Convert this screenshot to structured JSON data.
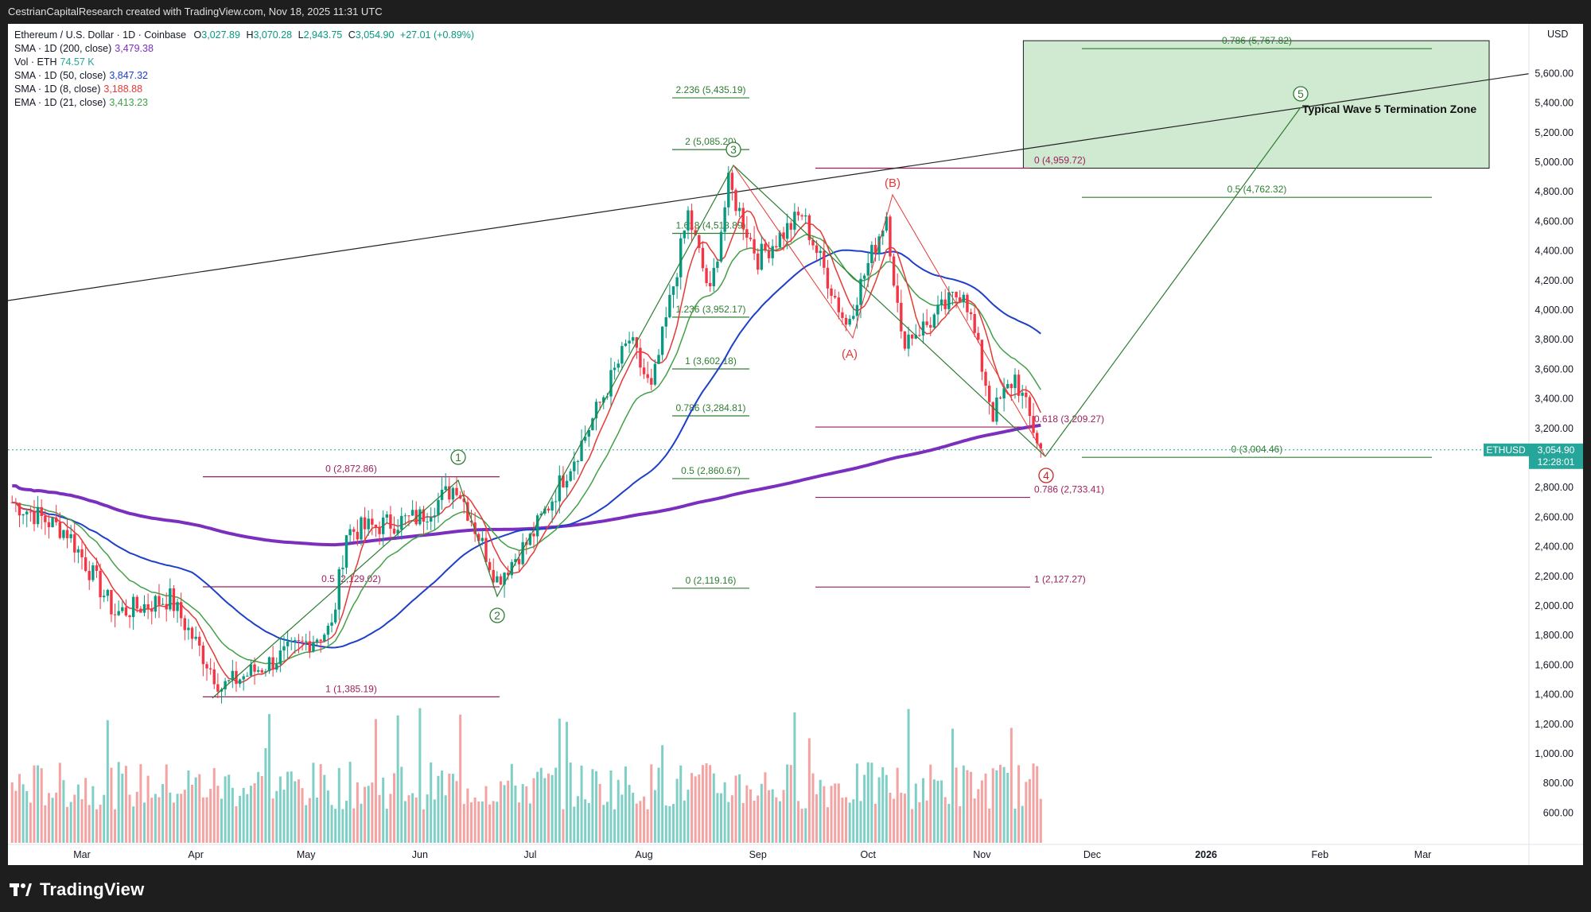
{
  "header": {
    "attribution": "CestrianCapitalResearch created with TradingView.com, Nov 18, 2025 11:31 UTC"
  },
  "legend": {
    "symbol": "Ethereum / U.S. Dollar · 1D · Coinbase",
    "ohlc": [
      {
        "k": "O",
        "v": "3,027.89"
      },
      {
        "k": "H",
        "v": "3,070.28"
      },
      {
        "k": "L",
        "v": "2,943.75"
      },
      {
        "k": "C",
        "v": "3,054.90"
      }
    ],
    "change": "+27.01 (+0.89%)",
    "indicators": [
      {
        "label": "SMA · 1D (200, close)",
        "value": "3,479.38",
        "color": "#7b2fbe"
      },
      {
        "label": "Vol · ETH",
        "value": "74.57 K",
        "color": "#26a69a"
      },
      {
        "label": "SMA · 1D (50, close)",
        "value": "3,847.32",
        "color": "#1e40c8"
      },
      {
        "label": "SMA · 1D (8, close)",
        "value": "3,188.88",
        "color": "#e53935"
      },
      {
        "label": "EMA · 1D (21, close)",
        "value": "3,413.23",
        "color": "#43a047"
      }
    ]
  },
  "price_axis": {
    "currency": "USD",
    "ticks": [
      "600.00",
      "800.00",
      "1,000.00",
      "1,200.00",
      "1,400.00",
      "1,600.00",
      "1,800.00",
      "2,000.00",
      "2,200.00",
      "2,400.00",
      "2,600.00",
      "2,800.00",
      "3,000.00",
      "3,200.00",
      "3,400.00",
      "3,600.00",
      "3,800.00",
      "4,000.00",
      "4,200.00",
      "4,400.00",
      "4,600.00",
      "4,800.00",
      "5,000.00",
      "5,200.00",
      "5,400.00",
      "5,600.00"
    ],
    "last_symbol": "ETHUSD",
    "last_price": "3,054.90",
    "countdown": "12:28:01"
  },
  "time_axis": {
    "ticks": [
      "Mar",
      "Apr",
      "May",
      "Jun",
      "Jul",
      "Aug",
      "Sep",
      "Oct",
      "Nov",
      "Dec",
      "2026",
      "Feb",
      "Mar"
    ],
    "bold": [
      "2026"
    ]
  },
  "annotations": {
    "fibs": [
      {
        "text": "0 (2,872.86)",
        "color": "#9c1f5c"
      },
      {
        "text": "0.5 (2,129.02)",
        "color": "#9c1f5c"
      },
      {
        "text": "1 (1,385.19)",
        "color": "#9c1f5c"
      },
      {
        "text": "2.236 (5,435.19)",
        "color": "#2e7d32"
      },
      {
        "text": "2 (5,085.20)",
        "color": "#2e7d32"
      },
      {
        "text": "1.618 (4,518.89)",
        "color": "#2e7d32"
      },
      {
        "text": "1.236 (3,952.17)",
        "color": "#2e7d32"
      },
      {
        "text": "1 (3,602.18)",
        "color": "#2e7d32"
      },
      {
        "text": "0.786 (3,284.81)",
        "color": "#2e7d32"
      },
      {
        "text": "0.5 (2,860.67)",
        "color": "#2e7d32"
      },
      {
        "text": "0 (2,119.16)",
        "color": "#2e7d32"
      },
      {
        "text": "0 (4,959.72)",
        "color": "#9c1f5c"
      },
      {
        "text": "0.618 (3,209.27)",
        "color": "#9c1f5c"
      },
      {
        "text": "0.786 (2,733.41)",
        "color": "#9c1f5c"
      },
      {
        "text": "1 (2,127.27)",
        "color": "#9c1f5c"
      },
      {
        "text": "0.786 (5,767.82)",
        "color": "#2e7d32"
      },
      {
        "text": "0.5 (4,762.32)",
        "color": "#2e7d32"
      },
      {
        "text": "0 (3,004.46)",
        "color": "#2e7d32"
      }
    ],
    "waves": [
      "1",
      "2",
      "3",
      "4",
      "5",
      "(A)",
      "(B)"
    ],
    "zone_label": "Typical Wave 5 Termination Zone"
  },
  "chart_data": {
    "type": "candlestick",
    "title": "Ethereum / U.S. Dollar · 1D · Coinbase",
    "x_range": [
      "2025-02-10",
      "2026-03-20"
    ],
    "y_range": [
      450,
      5850
    ],
    "y_scale": "linear",
    "last_close": 3054.9,
    "fib_levels": [
      2872.86,
      2129.02,
      1385.19,
      5435.19,
      5085.2,
      4518.89,
      3952.17,
      3602.18,
      3284.81,
      2860.67,
      2119.16,
      4959.72,
      3209.27,
      2733.41,
      2127.27,
      5767.82,
      4762.32,
      3004.46
    ],
    "wave_points": [
      {
        "label": "1",
        "date": "2025-06-11",
        "price": 2872.86
      },
      {
        "label": "2",
        "date": "2025-06-22",
        "price": 2119.16
      },
      {
        "label": "3",
        "date": "2025-08-24",
        "price": 4959.72
      },
      {
        "label": "(A)",
        "date": "2025-09-25",
        "price": 3820
      },
      {
        "label": "(B)",
        "date": "2025-10-06",
        "price": 4760
      },
      {
        "label": "4",
        "date": "2025-11-17",
        "price": 2943.75
      },
      {
        "label": "5",
        "date": "2026-01-22",
        "price": 5400
      }
    ],
    "termination_zone": {
      "from": "2025-11-01",
      "to": "2026-03-20",
      "low": 4959.72,
      "high": 5767.82
    },
    "series": [
      {
        "name": "SMA · 1D (200, close)",
        "last": 3479.38,
        "color": "#7b2fbe"
      },
      {
        "name": "SMA · 1D (50, close)",
        "last": 3847.32,
        "color": "#1e40c8"
      },
      {
        "name": "SMA · 1D (8, close)",
        "last": 3188.88,
        "color": "#e53935"
      },
      {
        "name": "EMA · 1D (21, close)",
        "last": 3413.23,
        "color": "#43a047"
      }
    ],
    "legend_position": "top-left",
    "grid": false
  }
}
